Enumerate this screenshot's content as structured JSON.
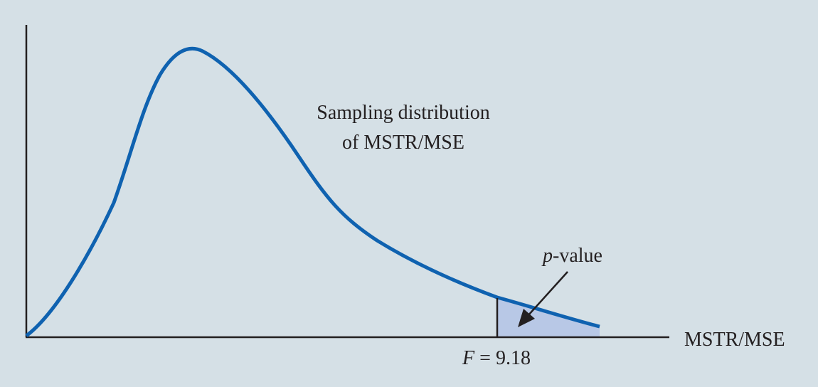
{
  "curve_label_line1": "Sampling distribution",
  "curve_label_line2": "of MSTR/MSE",
  "pvalue_label_italic": "p",
  "pvalue_label_rest": "-value",
  "x_axis_label": "MSTR/MSE",
  "f_label_italic": "F",
  "f_label_rest": " = 9.18",
  "colors": {
    "background": "#d5e0e6",
    "curve": "#0f62b0",
    "shaded_area": "#b8c8e6",
    "axes": "#231f20"
  }
}
